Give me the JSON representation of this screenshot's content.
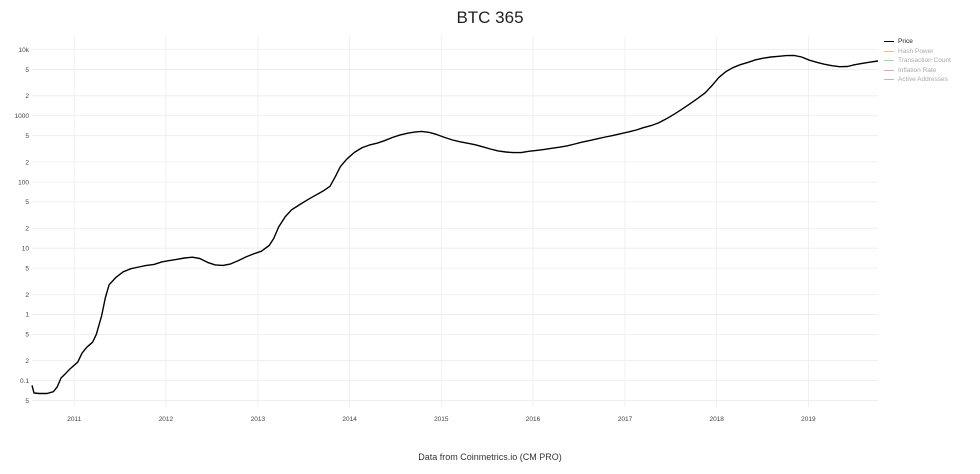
{
  "title": "BTC 365",
  "footer": "Data from Coinmetrics.io (CM PRO)",
  "legend": [
    {
      "label": "Price",
      "color": "#000000",
      "active": true
    },
    {
      "label": "Hash Power",
      "color": "#f4b8a0",
      "active": false
    },
    {
      "label": "Transaction Count",
      "color": "#a8d8a8",
      "active": false
    },
    {
      "label": "Inflation Rate",
      "color": "#f0a0a8",
      "active": false
    },
    {
      "label": "Active Addresses",
      "color": "#b8b8c8",
      "active": false
    }
  ],
  "chart_data": {
    "type": "line",
    "title": "BTC 365",
    "y_scale": "log",
    "ylim": [
      0.04,
      16000
    ],
    "xlim": [
      "2010-07-17",
      "2019-10-05"
    ],
    "y_major_ticks": [
      {
        "value": 0.1,
        "label": "0.1"
      },
      {
        "value": 1,
        "label": "1"
      },
      {
        "value": 10,
        "label": "10"
      },
      {
        "value": 100,
        "label": "100"
      },
      {
        "value": 1000,
        "label": "1000"
      },
      {
        "value": 10000,
        "label": "10k"
      }
    ],
    "y_minor_ticks": [
      {
        "value": 0.05,
        "label": "5"
      },
      {
        "value": 0.2,
        "label": "2"
      },
      {
        "value": 0.5,
        "label": "5"
      },
      {
        "value": 2,
        "label": "2"
      },
      {
        "value": 5,
        "label": "5"
      },
      {
        "value": 20,
        "label": "2"
      },
      {
        "value": 50,
        "label": "5"
      },
      {
        "value": 200,
        "label": "2"
      },
      {
        "value": 500,
        "label": "5"
      },
      {
        "value": 2000,
        "label": "2"
      },
      {
        "value": 5000,
        "label": "5"
      }
    ],
    "x_ticks": [
      {
        "date": "2011-01-01",
        "label": "2011"
      },
      {
        "date": "2012-01-01",
        "label": "2012"
      },
      {
        "date": "2013-01-01",
        "label": "2013"
      },
      {
        "date": "2014-01-01",
        "label": "2014"
      },
      {
        "date": "2015-01-01",
        "label": "2015"
      },
      {
        "date": "2016-01-01",
        "label": "2016"
      },
      {
        "date": "2017-01-01",
        "label": "2017"
      },
      {
        "date": "2018-01-01",
        "label": "2018"
      },
      {
        "date": "2019-01-01",
        "label": "2019"
      }
    ],
    "grid": true,
    "legend_position": "top-right",
    "series": [
      {
        "name": "Price",
        "color": "#000000",
        "points": [
          [
            "2010-07-17",
            0.085
          ],
          [
            "2010-07-25",
            0.065
          ],
          [
            "2010-08-15",
            0.064
          ],
          [
            "2010-09-15",
            0.064
          ],
          [
            "2010-10-10",
            0.068
          ],
          [
            "2010-10-25",
            0.08
          ],
          [
            "2010-11-10",
            0.11
          ],
          [
            "2010-11-25",
            0.125
          ],
          [
            "2010-12-15",
            0.15
          ],
          [
            "2011-01-15",
            0.19
          ],
          [
            "2011-02-01",
            0.26
          ],
          [
            "2011-02-20",
            0.32
          ],
          [
            "2011-03-15",
            0.38
          ],
          [
            "2011-03-30",
            0.5
          ],
          [
            "2011-04-20",
            0.95
          ],
          [
            "2011-05-05",
            1.8
          ],
          [
            "2011-05-20",
            2.8
          ],
          [
            "2011-06-15",
            3.6
          ],
          [
            "2011-07-15",
            4.4
          ],
          [
            "2011-08-15",
            4.9
          ],
          [
            "2011-09-15",
            5.2
          ],
          [
            "2011-10-15",
            5.5
          ],
          [
            "2011-11-15",
            5.7
          ],
          [
            "2011-12-15",
            6.2
          ],
          [
            "2012-01-15",
            6.5
          ],
          [
            "2012-02-15",
            6.8
          ],
          [
            "2012-03-15",
            7.1
          ],
          [
            "2012-04-15",
            7.3
          ],
          [
            "2012-05-15",
            7.0
          ],
          [
            "2012-06-15",
            6.1
          ],
          [
            "2012-07-15",
            5.6
          ],
          [
            "2012-08-15",
            5.5
          ],
          [
            "2012-09-15",
            5.8
          ],
          [
            "2012-10-15",
            6.5
          ],
          [
            "2012-11-15",
            7.4
          ],
          [
            "2012-12-15",
            8.2
          ],
          [
            "2013-01-15",
            9.0
          ],
          [
            "2013-02-15",
            11.0
          ],
          [
            "2013-03-05",
            14.0
          ],
          [
            "2013-03-25",
            21.0
          ],
          [
            "2013-04-20",
            30.0
          ],
          [
            "2013-05-15",
            38.0
          ],
          [
            "2013-06-15",
            45.0
          ],
          [
            "2013-07-15",
            53.0
          ],
          [
            "2013-08-15",
            62.0
          ],
          [
            "2013-09-15",
            72.0
          ],
          [
            "2013-10-15",
            86.0
          ],
          [
            "2013-11-05",
            120.0
          ],
          [
            "2013-11-25",
            170.0
          ],
          [
            "2013-12-20",
            220.0
          ],
          [
            "2014-01-20",
            280.0
          ],
          [
            "2014-02-20",
            330.0
          ],
          [
            "2014-03-20",
            360.0
          ],
          [
            "2014-04-20",
            385.0
          ],
          [
            "2014-05-20",
            420.0
          ],
          [
            "2014-06-20",
            470.0
          ],
          [
            "2014-07-20",
            510.0
          ],
          [
            "2014-08-20",
            545.0
          ],
          [
            "2014-09-20",
            570.0
          ],
          [
            "2014-10-15",
            580.0
          ],
          [
            "2014-11-15",
            560.0
          ],
          [
            "2014-12-15",
            520.0
          ],
          [
            "2015-01-15",
            470.0
          ],
          [
            "2015-02-15",
            430.0
          ],
          [
            "2015-03-15",
            405.0
          ],
          [
            "2015-04-15",
            385.0
          ],
          [
            "2015-05-15",
            365.0
          ],
          [
            "2015-06-15",
            340.0
          ],
          [
            "2015-07-15",
            315.0
          ],
          [
            "2015-08-15",
            295.0
          ],
          [
            "2015-09-15",
            283.0
          ],
          [
            "2015-10-15",
            278.0
          ],
          [
            "2015-11-15",
            278.0
          ],
          [
            "2015-12-15",
            290.0
          ],
          [
            "2016-01-15",
            300.0
          ],
          [
            "2016-02-15",
            310.0
          ],
          [
            "2016-03-15",
            322.0
          ],
          [
            "2016-04-15",
            335.0
          ],
          [
            "2016-05-15",
            350.0
          ],
          [
            "2016-06-15",
            375.0
          ],
          [
            "2016-07-15",
            400.0
          ],
          [
            "2016-08-15",
            425.0
          ],
          [
            "2016-09-15",
            450.0
          ],
          [
            "2016-10-15",
            478.0
          ],
          [
            "2016-11-15",
            505.0
          ],
          [
            "2016-12-15",
            535.0
          ],
          [
            "2017-01-15",
            570.0
          ],
          [
            "2017-02-15",
            610.0
          ],
          [
            "2017-03-15",
            660.0
          ],
          [
            "2017-04-15",
            710.0
          ],
          [
            "2017-05-15",
            780.0
          ],
          [
            "2017-06-15",
            900.0
          ],
          [
            "2017-07-15",
            1050.0
          ],
          [
            "2017-08-15",
            1250.0
          ],
          [
            "2017-09-15",
            1500.0
          ],
          [
            "2017-10-15",
            1800.0
          ],
          [
            "2017-11-15",
            2200.0
          ],
          [
            "2017-12-15",
            2900.0
          ],
          [
            "2018-01-10",
            3800.0
          ],
          [
            "2018-02-05",
            4600.0
          ],
          [
            "2018-03-05",
            5300.0
          ],
          [
            "2018-04-05",
            5900.0
          ],
          [
            "2018-05-05",
            6400.0
          ],
          [
            "2018-06-05",
            7000.0
          ],
          [
            "2018-07-05",
            7400.0
          ],
          [
            "2018-08-05",
            7700.0
          ],
          [
            "2018-09-05",
            7900.0
          ],
          [
            "2018-10-05",
            8100.0
          ],
          [
            "2018-11-05",
            8150.0
          ],
          [
            "2018-12-05",
            7700.0
          ],
          [
            "2019-01-05",
            6900.0
          ],
          [
            "2019-02-05",
            6400.0
          ],
          [
            "2019-03-05",
            6000.0
          ],
          [
            "2019-04-05",
            5700.0
          ],
          [
            "2019-05-05",
            5500.0
          ],
          [
            "2019-06-05",
            5550.0
          ],
          [
            "2019-07-05",
            5900.0
          ],
          [
            "2019-08-05",
            6200.0
          ],
          [
            "2019-09-05",
            6450.0
          ],
          [
            "2019-10-05",
            6700.0
          ]
        ]
      }
    ]
  }
}
